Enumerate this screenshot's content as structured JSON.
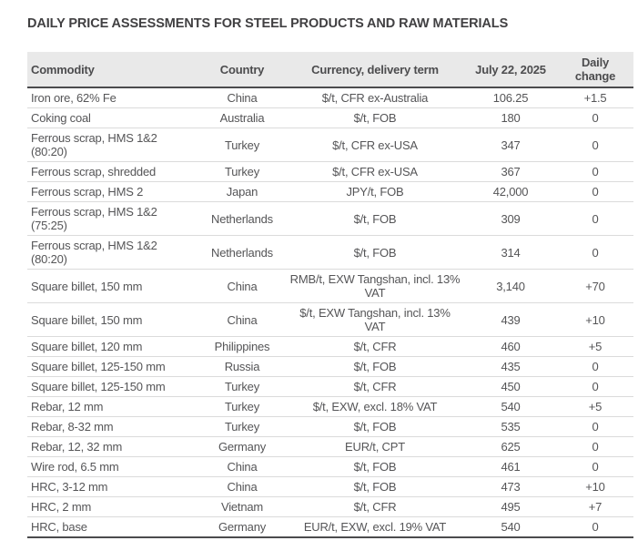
{
  "title": "DAILY PRICE ASSESSMENTS FOR STEEL PRODUCTS AND RAW MATERIALS",
  "colors": {
    "header_background": "#e9e9e9",
    "header_text": "#4c4c4e",
    "body_text": "#555557",
    "title_text": "#414042",
    "row_divider": "#dbdbdb",
    "strong_rule": "#4b4b4d"
  },
  "table": {
    "columns": [
      {
        "key": "commodity",
        "label": "Commodity"
      },
      {
        "key": "country",
        "label": "Country"
      },
      {
        "key": "currency",
        "label": "Currency, delivery term"
      },
      {
        "key": "price",
        "label": "July 22, 2025"
      },
      {
        "key": "change",
        "label": "Daily change"
      }
    ],
    "rows": [
      {
        "commodity": "Iron ore, 62% Fe",
        "country": "China",
        "currency": "$/t, CFR ex-Australia",
        "price": "106.25",
        "change": "+1.5"
      },
      {
        "commodity": "Coking coal",
        "country": "Australia",
        "currency": "$/t, FOB",
        "price": "180",
        "change": "0"
      },
      {
        "commodity": "Ferrous scrap, HMS 1&2 (80:20)",
        "country": "Turkey",
        "currency": "$/t, CFR ex-USA",
        "price": "347",
        "change": "0"
      },
      {
        "commodity": "Ferrous scrap, shredded",
        "country": "Turkey",
        "currency": "$/t, CFR ex-USA",
        "price": "367",
        "change": "0"
      },
      {
        "commodity": "Ferrous scrap, HMS 2",
        "country": "Japan",
        "currency": "JPY/t, FOB",
        "price": "42,000",
        "change": "0"
      },
      {
        "commodity": "Ferrous scrap, HMS 1&2 (75:25)",
        "country": "Netherlands",
        "currency": "$/t, FOB",
        "price": "309",
        "change": "0"
      },
      {
        "commodity": "Ferrous scrap, HMS 1&2 (80:20)",
        "country": "Netherlands",
        "currency": "$/t, FOB",
        "price": "314",
        "change": "0"
      },
      {
        "commodity": "Square billet, 150 mm",
        "country": "China",
        "currency": "RMB/t, EXW Tangshan, incl. 13% VAT",
        "price": "3,140",
        "change": "+70"
      },
      {
        "commodity": "Square billet, 150 mm",
        "country": "China",
        "currency": "$/t, EXW Tangshan, incl. 13% VAT",
        "price": "439",
        "change": "+10"
      },
      {
        "commodity": "Square billet, 120 mm",
        "country": "Philippines",
        "currency": "$/t, CFR",
        "price": "460",
        "change": "+5"
      },
      {
        "commodity": "Square billet, 125-150 mm",
        "country": "Russia",
        "currency": "$/t, FOB",
        "price": "435",
        "change": "0"
      },
      {
        "commodity": "Square billet, 125-150 mm",
        "country": "Turkey",
        "currency": "$/t, CFR",
        "price": "450",
        "change": "0"
      },
      {
        "commodity": "Rebar, 12 mm",
        "country": "Turkey",
        "currency": "$/t, EXW, excl. 18% VAT",
        "price": "540",
        "change": "+5"
      },
      {
        "commodity": "Rebar, 8-32 mm",
        "country": "Turkey",
        "currency": "$/t, FOB",
        "price": "535",
        "change": "0"
      },
      {
        "commodity": "Rebar, 12, 32 mm",
        "country": "Germany",
        "currency": "EUR/t, CPT",
        "price": "625",
        "change": "0"
      },
      {
        "commodity": "Wire rod, 6.5 mm",
        "country": "China",
        "currency": "$/t, FOB",
        "price": "461",
        "change": "0"
      },
      {
        "commodity": "HRC, 3-12 mm",
        "country": "China",
        "currency": "$/t, FOB",
        "price": "473",
        "change": "+10"
      },
      {
        "commodity": "HRC, 2 mm",
        "country": "Vietnam",
        "currency": "$/t, CFR",
        "price": "495",
        "change": "+7"
      },
      {
        "commodity": "HRC, base",
        "country": "Germany",
        "currency": "EUR/t, EXW, excl. 19% VAT",
        "price": "540",
        "change": "0"
      }
    ]
  }
}
